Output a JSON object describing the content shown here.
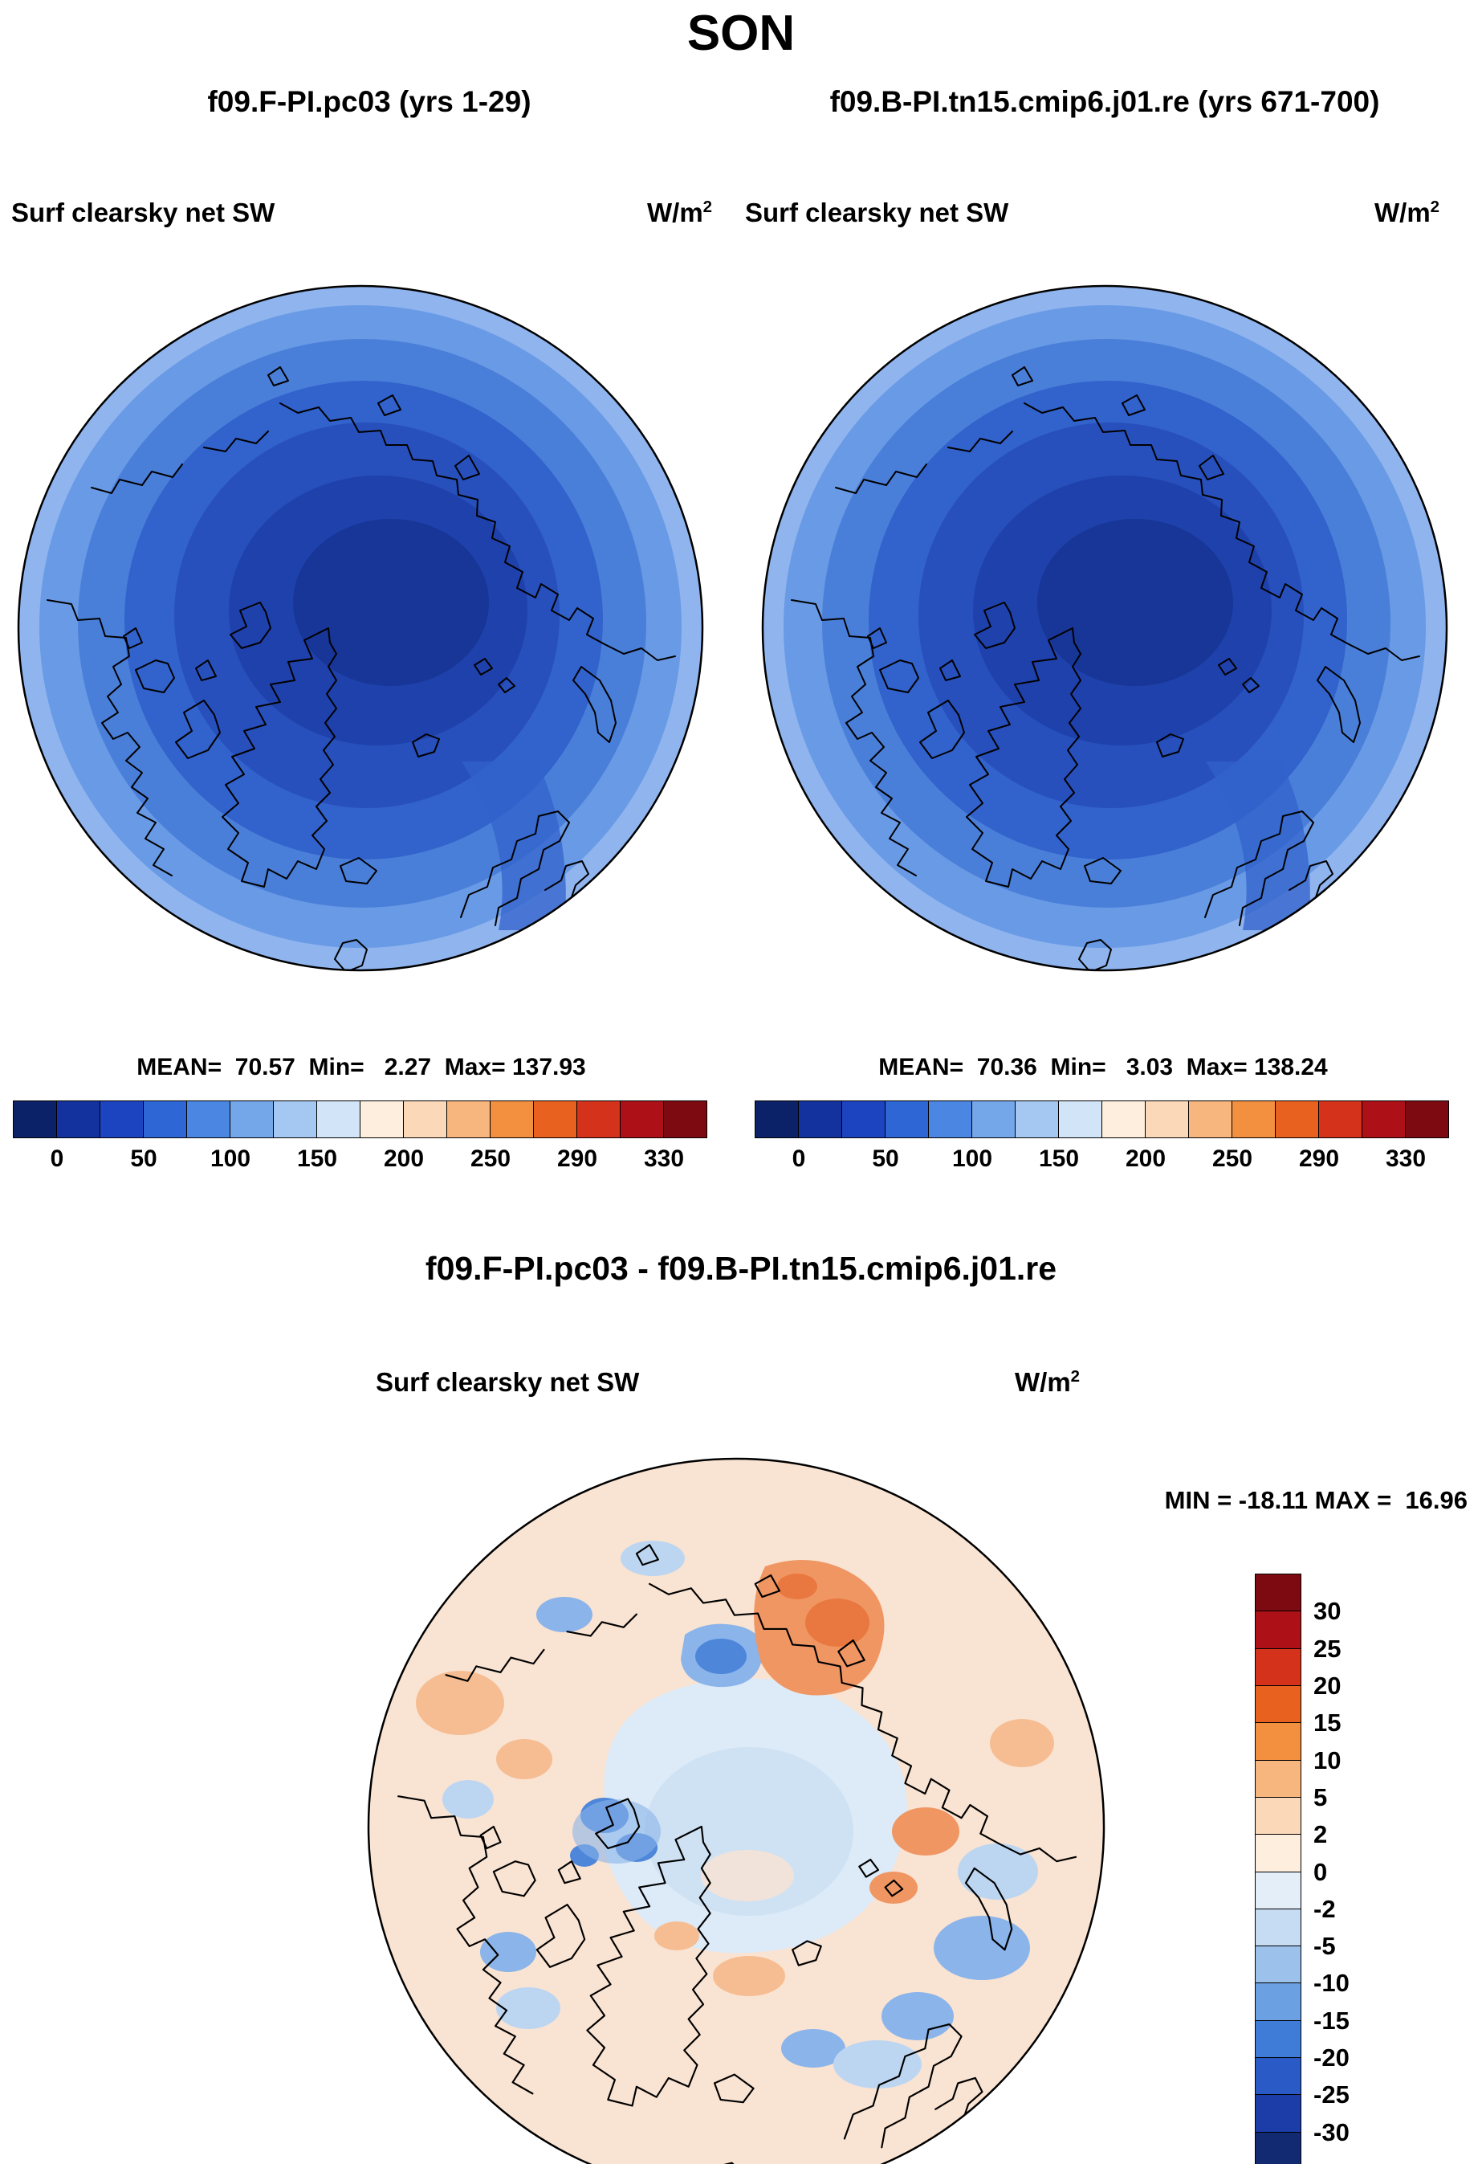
{
  "title": "SON",
  "panels": {
    "left": {
      "subtitle": "f09.F-PI.pc03 (yrs 1-29)",
      "field_label": "Surf clearsky net SW",
      "units": "W/m",
      "units_sup": "2",
      "stats_text": "MEAN=  70.57  Min=   2.27  Max= 137.93"
    },
    "right": {
      "subtitle": "f09.B-PI.tn15.cmip6.j01.re (yrs 671-700)",
      "field_label": "Surf clearsky net SW",
      "units": "W/m",
      "units_sup": "2",
      "stats_text": "MEAN=  70.36  Min=   3.03  Max= 138.24"
    }
  },
  "diff": {
    "title": "f09.F-PI.pc03 - f09.B-PI.tn15.cmip6.j01.re",
    "field_label": "Surf clearsky net SW",
    "units": "W/m",
    "units_sup": "2",
    "minmax_text": "MIN = -18.11 MAX =  16.96"
  },
  "colorbar": {
    "ticks": [
      "0",
      "50",
      "100",
      "150",
      "200",
      "250",
      "290",
      "330"
    ],
    "colors": [
      "#0b2268",
      "#14329e",
      "#1d44c0",
      "#2f66d6",
      "#4a86e2",
      "#74a6ea",
      "#a4c8f2",
      "#d2e4f8",
      "#fdeede",
      "#fbd9b8",
      "#f8b67f",
      "#f3903f",
      "#e8611f",
      "#d5321c",
      "#ad1117",
      "#7c0a10"
    ]
  },
  "diff_colorbar": {
    "labels": [
      "30",
      "25",
      "20",
      "15",
      "10",
      "5",
      "2",
      "0",
      "-2",
      "-5",
      "-10",
      "-15",
      "-20",
      "-25",
      "-30"
    ],
    "colors": [
      "#7c0a10",
      "#ad1117",
      "#d5321c",
      "#e8611f",
      "#f3903f",
      "#f8b67f",
      "#fbd9b8",
      "#fdeede",
      "#e4eef9",
      "#c6dcf3",
      "#9cc2ec",
      "#6ba0e2",
      "#3f7cd8",
      "#2a5ac6",
      "#1c3da8",
      "#112a72"
    ]
  },
  "chart_data": {
    "type": "heatmap",
    "subtype": "polar stereographic filled-contour maps",
    "title": "SON",
    "variable": "Surf clearsky net SW",
    "units": "W/m^2",
    "projection": "northern hemisphere, pole at center",
    "panels": [
      {
        "id": "left",
        "case": "f09.F-PI.pc03",
        "years": "1-29",
        "mean": 70.57,
        "min": 2.27,
        "max": 137.93,
        "colorbar_ticks": [
          0,
          50,
          100,
          150,
          200,
          250,
          290,
          330
        ],
        "pattern": "concentric bands; ~0-25 W/m^2 (dark navy) near the pole increasing to ~130-140 W/m^2 (light blue) at the map edge"
      },
      {
        "id": "right",
        "case": "f09.B-PI.tn15.cmip6.j01.re",
        "years": "671-700",
        "mean": 70.36,
        "min": 3.03,
        "max": 138.24,
        "colorbar_ticks": [
          0,
          50,
          100,
          150,
          200,
          250,
          290,
          330
        ],
        "pattern": "nearly identical to left panel"
      },
      {
        "id": "difference",
        "case": "f09.F-PI.pc03 - f09.B-PI.tn15.cmip6.j01.re",
        "min": -18.11,
        "max": 16.96,
        "colorbar_ticks": [
          30,
          25,
          20,
          15,
          10,
          5,
          2,
          0,
          -2,
          -5,
          -10,
          -15,
          -20,
          -25,
          -30
        ],
        "pattern": "mostly within +/-2 W/m^2 (cream/pale blue); orange patches (+5 to +15) over Siberia and the Barents/Kara region; blue patches (-5 to -15) over the Canadian Archipelago and Laptev Sea area"
      }
    ],
    "legend_position": "horizontal 16-box colorbars under each top panel; vertical 16-box colorbar right of the difference panel",
    "grid": false
  }
}
